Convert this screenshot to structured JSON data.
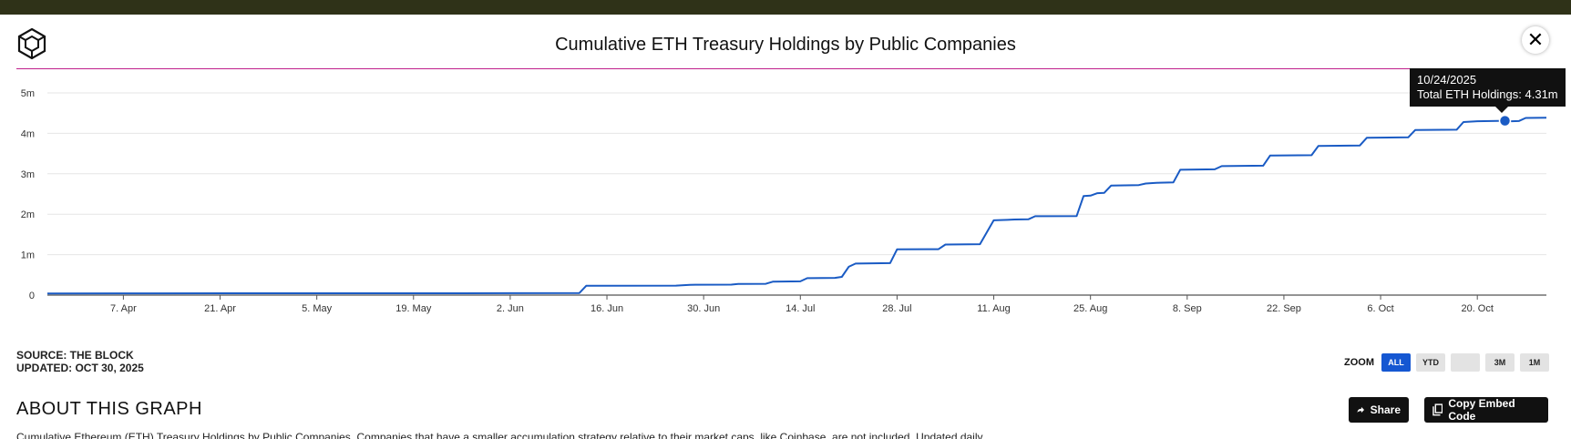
{
  "header": {
    "title": "Cumulative ETH Treasury Holdings by Public Companies"
  },
  "chart_data": {
    "type": "line",
    "title": "Cumulative ETH Treasury Holdings by Public Companies",
    "xlabel": "",
    "ylabel": "",
    "x_range": [
      "2025-03-27",
      "2025-10-30"
    ],
    "ylim": [
      0,
      5000000
    ],
    "y_ticks": [
      {
        "v": 0,
        "label": "0"
      },
      {
        "v": 1000000,
        "label": "1m"
      },
      {
        "v": 2000000,
        "label": "2m"
      },
      {
        "v": 3000000,
        "label": "3m"
      },
      {
        "v": 4000000,
        "label": "4m"
      },
      {
        "v": 5000000,
        "label": "5m"
      }
    ],
    "x_ticks": [
      {
        "date": "2025-04-07",
        "label": "7. Apr"
      },
      {
        "date": "2025-04-21",
        "label": "21. Apr"
      },
      {
        "date": "2025-05-05",
        "label": "5. May"
      },
      {
        "date": "2025-05-19",
        "label": "19. May"
      },
      {
        "date": "2025-06-02",
        "label": "2. Jun"
      },
      {
        "date": "2025-06-16",
        "label": "16. Jun"
      },
      {
        "date": "2025-06-30",
        "label": "30. Jun"
      },
      {
        "date": "2025-07-14",
        "label": "14. Jul"
      },
      {
        "date": "2025-07-28",
        "label": "28. Jul"
      },
      {
        "date": "2025-08-11",
        "label": "11. Aug"
      },
      {
        "date": "2025-08-25",
        "label": "25. Aug"
      },
      {
        "date": "2025-09-08",
        "label": "8. Sep"
      },
      {
        "date": "2025-09-22",
        "label": "22. Sep"
      },
      {
        "date": "2025-10-06",
        "label": "6. Oct"
      },
      {
        "date": "2025-10-20",
        "label": "20. Oct"
      }
    ],
    "grid": true,
    "series": [
      {
        "name": "Total ETH Holdings",
        "color": "#1a5bc4",
        "points": [
          [
            "2025-03-27",
            40000
          ],
          [
            "2025-04-11",
            42000
          ],
          [
            "2025-05-01",
            44000
          ],
          [
            "2025-05-21",
            46000
          ],
          [
            "2025-06-02",
            48000
          ],
          [
            "2025-06-12",
            50000
          ],
          [
            "2025-06-13",
            230000
          ],
          [
            "2025-06-26",
            235000
          ],
          [
            "2025-06-28",
            255000
          ],
          [
            "2025-07-04",
            260000
          ],
          [
            "2025-07-05",
            275000
          ],
          [
            "2025-07-09",
            280000
          ],
          [
            "2025-07-10",
            330000
          ],
          [
            "2025-07-14",
            340000
          ],
          [
            "2025-07-15",
            420000
          ],
          [
            "2025-07-19",
            425000
          ],
          [
            "2025-07-20",
            450000
          ],
          [
            "2025-07-21",
            700000
          ],
          [
            "2025-07-22",
            780000
          ],
          [
            "2025-07-27",
            790000
          ],
          [
            "2025-07-28",
            1130000
          ],
          [
            "2025-08-03",
            1135000
          ],
          [
            "2025-08-04",
            1250000
          ],
          [
            "2025-08-09",
            1260000
          ],
          [
            "2025-08-11",
            1850000
          ],
          [
            "2025-08-13",
            1860000
          ],
          [
            "2025-08-14",
            1870000
          ],
          [
            "2025-08-16",
            1875000
          ],
          [
            "2025-08-17",
            1950000
          ],
          [
            "2025-08-23",
            1955000
          ],
          [
            "2025-08-24",
            2450000
          ],
          [
            "2025-08-25",
            2460000
          ],
          [
            "2025-08-26",
            2520000
          ],
          [
            "2025-08-27",
            2530000
          ],
          [
            "2025-08-28",
            2710000
          ],
          [
            "2025-09-01",
            2720000
          ],
          [
            "2025-09-02",
            2760000
          ],
          [
            "2025-09-03",
            2770000
          ],
          [
            "2025-09-04",
            2780000
          ],
          [
            "2025-09-06",
            2785000
          ],
          [
            "2025-09-07",
            3100000
          ],
          [
            "2025-09-12",
            3110000
          ],
          [
            "2025-09-13",
            3190000
          ],
          [
            "2025-09-19",
            3200000
          ],
          [
            "2025-09-20",
            3450000
          ],
          [
            "2025-09-26",
            3460000
          ],
          [
            "2025-09-27",
            3690000
          ],
          [
            "2025-10-03",
            3700000
          ],
          [
            "2025-10-04",
            3890000
          ],
          [
            "2025-10-10",
            3900000
          ],
          [
            "2025-10-11",
            4080000
          ],
          [
            "2025-10-17",
            4090000
          ],
          [
            "2025-10-18",
            4280000
          ],
          [
            "2025-10-20",
            4300000
          ],
          [
            "2025-10-24",
            4310000
          ],
          [
            "2025-10-25",
            4300000
          ],
          [
            "2025-10-26",
            4305000
          ],
          [
            "2025-10-27",
            4380000
          ],
          [
            "2025-10-30",
            4385000
          ]
        ]
      }
    ],
    "tooltip": {
      "date": "2025-10-24",
      "value": 4310000,
      "line1": "10/24/2025",
      "line2": "Total ETH Holdings: 4.31m"
    }
  },
  "footer": {
    "source": "SOURCE: THE BLOCK",
    "updated": "UPDATED: OCT 30, 2025",
    "zoom_label": "ZOOM",
    "zoom_buttons": [
      {
        "label": "ALL",
        "active": true
      },
      {
        "label": "YTD",
        "active": false
      },
      {
        "label": "",
        "active": false
      },
      {
        "label": "3M",
        "active": false
      },
      {
        "label": "1M",
        "active": false
      }
    ],
    "share_label": "Share",
    "embed_label": "Copy Embed Code",
    "about_title": "ABOUT THIS GRAPH",
    "description": "Cumulative Ethereum (ETH) Treasury Holdings by Public Companies. Companies that have a smaller accumulation strategy relative to their market caps, like Coinbase, are not included. Updated daily."
  }
}
